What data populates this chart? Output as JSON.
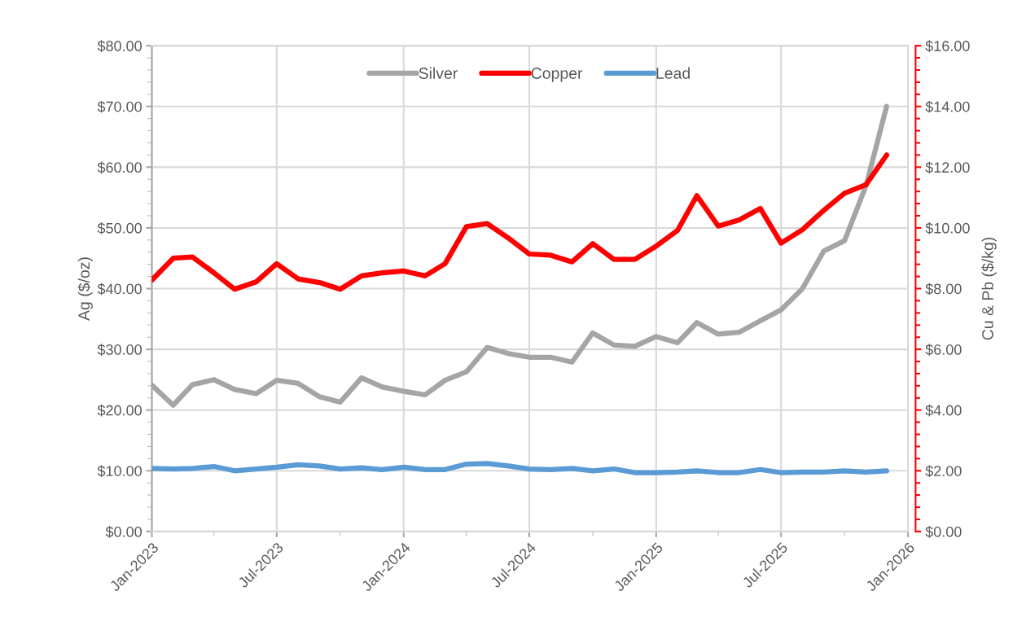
{
  "chart_data": {
    "type": "line",
    "x": [
      "2023-01",
      "2023-02",
      "2023-03",
      "2023-04",
      "2023-05",
      "2023-06",
      "2023-07",
      "2023-08",
      "2023-09",
      "2023-10",
      "2023-11",
      "2023-12",
      "2024-01",
      "2024-02",
      "2024-03",
      "2024-04",
      "2024-05",
      "2024-06",
      "2024-07",
      "2024-08",
      "2024-09",
      "2024-10",
      "2024-11",
      "2024-12",
      "2025-01",
      "2025-02",
      "2025-03",
      "2025-04",
      "2025-05",
      "2025-06",
      "2025-07",
      "2025-08",
      "2025-09",
      "2025-10",
      "2025-11",
      "2025-12"
    ],
    "series": [
      {
        "name": "Silver",
        "color": "#a5a5a5",
        "values": [
          24.1,
          20.8,
          24.2,
          25.0,
          23.4,
          22.7,
          24.9,
          24.4,
          22.2,
          21.3,
          25.3,
          23.8,
          23.1,
          22.5,
          24.9,
          26.3,
          30.3,
          29.3,
          28.7,
          28.7,
          27.9,
          32.7,
          30.7,
          30.5,
          32.1,
          31.1,
          34.4,
          32.5,
          32.8,
          34.7,
          36.5,
          40.0,
          46.2,
          47.9,
          56.9,
          70.0
        ]
      },
      {
        "name": "Copper",
        "color": "#ff0000",
        "axis": "y2",
        "values": [
          8.28,
          9.0,
          9.04,
          8.52,
          7.98,
          8.22,
          8.82,
          8.32,
          8.2,
          7.98,
          8.42,
          8.52,
          8.58,
          8.42,
          8.82,
          10.04,
          10.14,
          9.66,
          9.14,
          9.1,
          8.88,
          9.48,
          8.96,
          8.96,
          9.4,
          9.92,
          11.06,
          10.06,
          10.26,
          10.64,
          9.5,
          9.94,
          10.58,
          11.14,
          11.42,
          12.4
        ]
      },
      {
        "name": "Lead",
        "color": "#5b9bd5",
        "axis": "y2",
        "values": [
          2.08,
          2.06,
          2.08,
          2.14,
          2.0,
          2.06,
          2.12,
          2.2,
          2.16,
          2.06,
          2.1,
          2.04,
          2.12,
          2.04,
          2.04,
          2.22,
          2.24,
          2.16,
          2.06,
          2.04,
          2.08,
          2.0,
          2.06,
          1.94,
          1.94,
          1.96,
          2.0,
          1.94,
          1.94,
          2.04,
          1.94,
          1.96,
          1.96,
          2.0,
          1.96,
          2.0
        ]
      }
    ],
    "ylabel": "Ag ($/oz)",
    "y2label": "Cu & Pb ($/kg)",
    "xlim": [
      "2023-01-01",
      "2026-01-01"
    ],
    "xticks": [
      {
        "value": "2023-01-01",
        "label": "Jan-2023"
      },
      {
        "value": "2023-07-01",
        "label": "Jul-2023"
      },
      {
        "value": "2024-01-01",
        "label": "Jan-2024"
      },
      {
        "value": "2024-07-01",
        "label": "Jul-2024"
      },
      {
        "value": "2025-01-01",
        "label": "Jan-2025"
      },
      {
        "value": "2025-07-01",
        "label": "Jul-2025"
      },
      {
        "value": "2026-01-01",
        "label": "Jan-2026"
      }
    ],
    "ylim": [
      0,
      80
    ],
    "yticks": [
      {
        "value": 0,
        "label": "$0.00"
      },
      {
        "value": 10,
        "label": "$10.00"
      },
      {
        "value": 20,
        "label": "$20.00"
      },
      {
        "value": 30,
        "label": "$30.00"
      },
      {
        "value": 40,
        "label": "$40.00"
      },
      {
        "value": 50,
        "label": "$50.00"
      },
      {
        "value": 60,
        "label": "$60.00"
      },
      {
        "value": 70,
        "label": "$70.00"
      },
      {
        "value": 80,
        "label": "$80.00"
      }
    ],
    "y2lim": [
      0,
      16
    ],
    "y2ticks": [
      {
        "value": 0,
        "label": "$0.00"
      },
      {
        "value": 2,
        "label": "$2.00"
      },
      {
        "value": 4,
        "label": "$4.00"
      },
      {
        "value": 6,
        "label": "$6.00"
      },
      {
        "value": 8,
        "label": "$8.00"
      },
      {
        "value": 10,
        "label": "$10.00"
      },
      {
        "value": 12,
        "label": "$12.00"
      },
      {
        "value": 14,
        "label": "$14.00"
      },
      {
        "value": 16,
        "label": "$16.00"
      }
    ],
    "grid": true,
    "legend": "top",
    "marker": "none",
    "line_style": "solid"
  }
}
